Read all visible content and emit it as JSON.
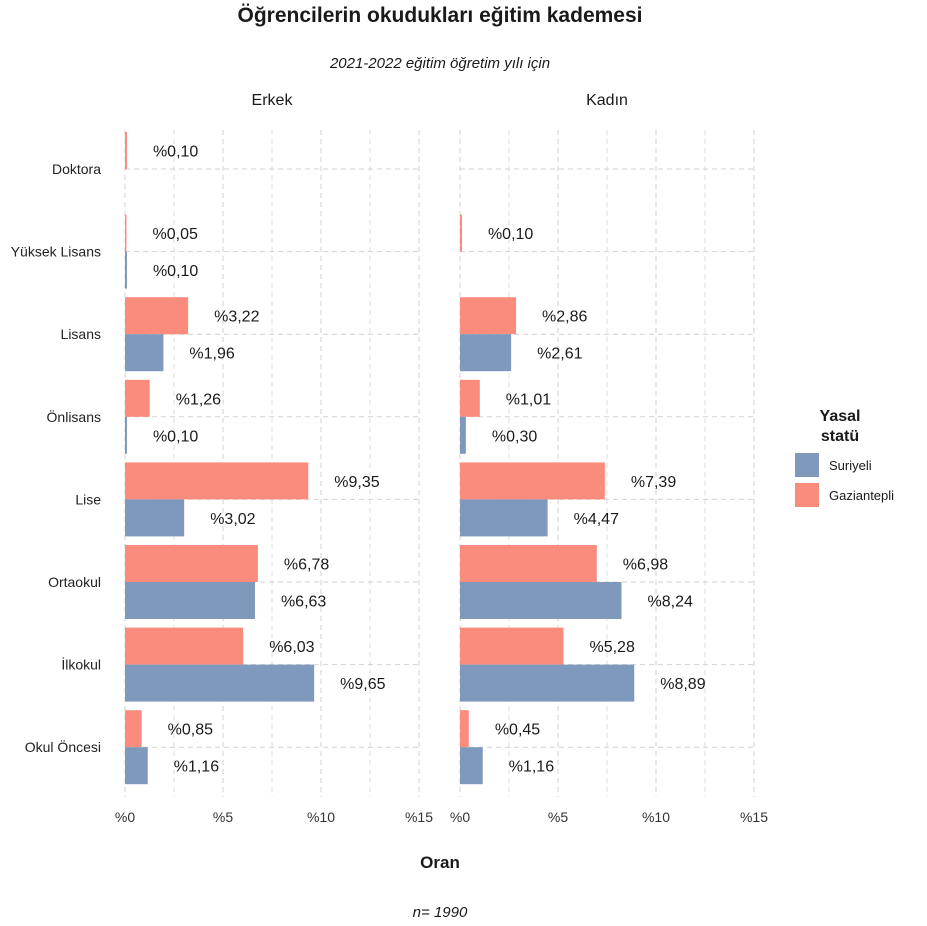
{
  "title": "Öğrencilerin okudukları eğitim kademesi",
  "subtitle": "2021-2022 eğitim öğretim yılı için",
  "xlabel": "Oran",
  "caption": "n=  1990",
  "legend": {
    "title_line1": "Yasal",
    "title_line2": "statü",
    "items": [
      {
        "label": "Suriyeli",
        "color": "#7f99bd"
      },
      {
        "label": "Gaziantepli",
        "color": "#fa8c7e"
      }
    ]
  },
  "chart_data": {
    "type": "bar",
    "orientation": "horizontal",
    "xlim": [
      0,
      15
    ],
    "x_ticks": [
      0,
      5,
      10,
      15
    ],
    "x_tick_labels": [
      "%0",
      "%5",
      "%10",
      "%15"
    ],
    "categories": [
      "Doktora",
      "Yüksek Lisans",
      "Lisans",
      "Önlisans",
      "Lise",
      "Ortaokul",
      "İlkokul",
      "Okul Öncesi"
    ],
    "grid": true,
    "legend_position": "right",
    "facets": [
      {
        "name": "Erkek",
        "series": [
          {
            "name": "Gaziantepli",
            "values": [
              0.1,
              0.05,
              3.22,
              1.26,
              9.35,
              6.78,
              6.03,
              0.85
            ],
            "labels": [
              "%0,10",
              "%0,05",
              "%3,22",
              "%1,26",
              "%9,35",
              "%6,78",
              "%6,03",
              "%0,85"
            ]
          },
          {
            "name": "Suriyeli",
            "values": [
              null,
              0.1,
              1.96,
              0.1,
              3.02,
              6.63,
              9.65,
              1.16
            ],
            "labels": [
              null,
              "%0,10",
              "%1,96",
              "%0,10",
              "%3,02",
              "%6,63",
              "%9,65",
              "%1,16"
            ]
          }
        ]
      },
      {
        "name": "Kadın",
        "series": [
          {
            "name": "Gaziantepli",
            "values": [
              null,
              0.1,
              2.86,
              1.01,
              7.39,
              6.98,
              5.28,
              0.45
            ],
            "labels": [
              null,
              "%0,10",
              "%2,86",
              "%1,01",
              "%7,39",
              "%6,98",
              "%5,28",
              "%0,45"
            ]
          },
          {
            "name": "Suriyeli",
            "values": [
              null,
              null,
              2.61,
              0.3,
              4.47,
              8.24,
              8.89,
              1.16
            ],
            "labels": [
              null,
              null,
              "%2,61",
              "%0,30",
              "%4,47",
              "%8,24",
              "%8,89",
              "%1,16"
            ]
          }
        ]
      }
    ]
  }
}
